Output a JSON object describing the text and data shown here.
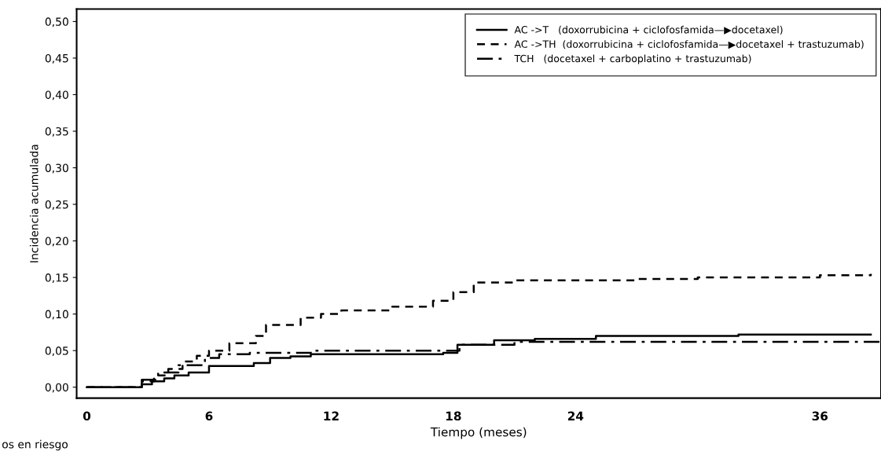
{
  "chart_data": {
    "type": "step",
    "xlabel": "Tiempo (meses)",
    "ylabel": "Incidencia acumulada",
    "xlim": [
      -0.5,
      39
    ],
    "ylim": [
      -0.015,
      0.517
    ],
    "xticks": [
      0,
      6,
      12,
      18,
      24,
      36
    ],
    "yticks": [
      {
        "value": 0,
        "label": "0,00"
      },
      {
        "value": 0.05,
        "label": "0,05"
      },
      {
        "value": 0.1,
        "label": "0,10"
      },
      {
        "value": 0.15,
        "label": "0,15"
      },
      {
        "value": 0.2,
        "label": "0,20"
      },
      {
        "value": 0.25,
        "label": "0,25"
      },
      {
        "value": 0.3,
        "label": "0,30"
      },
      {
        "value": 0.35,
        "label": "0,35"
      },
      {
        "value": 0.4,
        "label": "0,40"
      },
      {
        "value": 0.45,
        "label": "0,45"
      },
      {
        "value": 0.5,
        "label": "0,50"
      }
    ],
    "grid": false,
    "legend": "top right",
    "annotations": [
      "os en riesgo"
    ],
    "series": [
      {
        "name": "AC ->T   (doxorrubicina + ciclofosfamida—▶docetaxel)",
        "color": "#000000",
        "line_style": "solid",
        "x": [
          0,
          2.7,
          3.2,
          3.8,
          4.3,
          5,
          6,
          8.2,
          9,
          10,
          11,
          17.5,
          18.2,
          20,
          22,
          25,
          32,
          38.5
        ],
        "values": [
          0,
          0.004,
          0.008,
          0.012,
          0.016,
          0.02,
          0.029,
          0.033,
          0.04,
          0.042,
          0.045,
          0.047,
          0.058,
          0.064,
          0.066,
          0.07,
          0.072,
          0.072
        ]
      },
      {
        "name": "AC ->TH  (doxorrubicina + ciclofosfamida—▶docetaxel + trastuzumab)",
        "color": "#000000",
        "line_style": "dashed",
        "x": [
          0,
          2.7,
          3.3,
          4,
          4.7,
          5.4,
          6,
          7,
          8.3,
          8.8,
          10.5,
          11.5,
          12.5,
          15,
          17,
          18,
          19,
          21,
          27,
          30,
          36,
          38.5
        ],
        "values": [
          0,
          0.008,
          0.016,
          0.025,
          0.035,
          0.043,
          0.05,
          0.06,
          0.07,
          0.085,
          0.095,
          0.1,
          0.105,
          0.11,
          0.118,
          0.13,
          0.143,
          0.146,
          0.148,
          0.15,
          0.153,
          0.155
        ]
      },
      {
        "name": "TCH   (docetaxel + carboplatino + trastuzumab)",
        "color": "#000000",
        "line_style": "dashdot",
        "x": [
          0,
          2.7,
          3.5,
          4.5,
          5.8,
          6.5,
          8,
          11,
          18.3,
          21,
          39
        ],
        "values": [
          0,
          0.01,
          0.02,
          0.03,
          0.04,
          0.045,
          0.047,
          0.05,
          0.058,
          0.062,
          0.063
        ]
      }
    ]
  }
}
